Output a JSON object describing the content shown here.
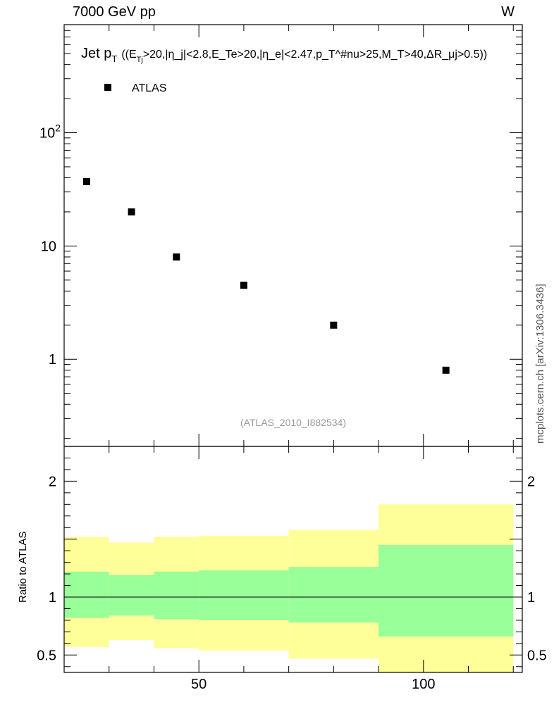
{
  "header": {
    "left": "7000 GeV pp",
    "right": "W"
  },
  "colors": {
    "band_outer": "#ffff99",
    "band_inner": "#99ff99",
    "marker": "#000000",
    "ref_tag": "#999999"
  },
  "chart_data": {
    "type": "scatter",
    "title_prefix": "Jet p",
    "title_sub": "T",
    "title_cuts": "((E",
    "title_cuts_sub": "Tj",
    "title_rest": ">20,|η_j|<2.8,E_Te>20,|η_e|<2.47,p_T^#nu>25,M_T>40,ΔR_μj>0.5))",
    "legend": [
      {
        "label": "ATLAS",
        "marker": "square"
      }
    ],
    "reference": "(ATLAS_2010_I882534)",
    "watermark": "mcplots.cern.ch [arXiv:1306.3436]",
    "x": [
      25,
      35,
      45,
      60,
      80,
      105
    ],
    "y": [
      37,
      20,
      8,
      4.5,
      2,
      0.8
    ],
    "xlim": [
      20,
      122
    ],
    "ylim": [
      0.17,
      900
    ],
    "yscale": "log",
    "main_y_ticks": [
      {
        "value": 1,
        "label": "1"
      },
      {
        "value": 10,
        "label": "10"
      },
      {
        "value": 100,
        "label": "10",
        "sup": "2"
      }
    ],
    "ratio": {
      "ylabel": "Ratio to ATLAS",
      "ylim": [
        0.35,
        2.3
      ],
      "ticks": [
        {
          "value": 0.5,
          "label": "0.5"
        },
        {
          "value": 1,
          "label": "1"
        },
        {
          "value": 2,
          "label": "2"
        }
      ],
      "bins": [
        {
          "lo": 20,
          "hi": 30,
          "outer": [
            0.57,
            1.52
          ],
          "inner": [
            0.82,
            1.22
          ]
        },
        {
          "lo": 30,
          "hi": 40,
          "outer": [
            0.63,
            1.47
          ],
          "inner": [
            0.84,
            1.19
          ]
        },
        {
          "lo": 40,
          "hi": 50,
          "outer": [
            0.56,
            1.52
          ],
          "inner": [
            0.81,
            1.22
          ]
        },
        {
          "lo": 50,
          "hi": 70,
          "outer": [
            0.54,
            1.53
          ],
          "inner": [
            0.8,
            1.23
          ]
        },
        {
          "lo": 70,
          "hi": 90,
          "outer": [
            0.47,
            1.58
          ],
          "inner": [
            0.78,
            1.26
          ]
        },
        {
          "lo": 90,
          "hi": 120,
          "outer": [
            0.35,
            1.8
          ],
          "inner": [
            0.66,
            1.45
          ]
        }
      ]
    },
    "x_ticks": [
      {
        "value": 50,
        "label": "50"
      },
      {
        "value": 100,
        "label": "100"
      }
    ]
  }
}
